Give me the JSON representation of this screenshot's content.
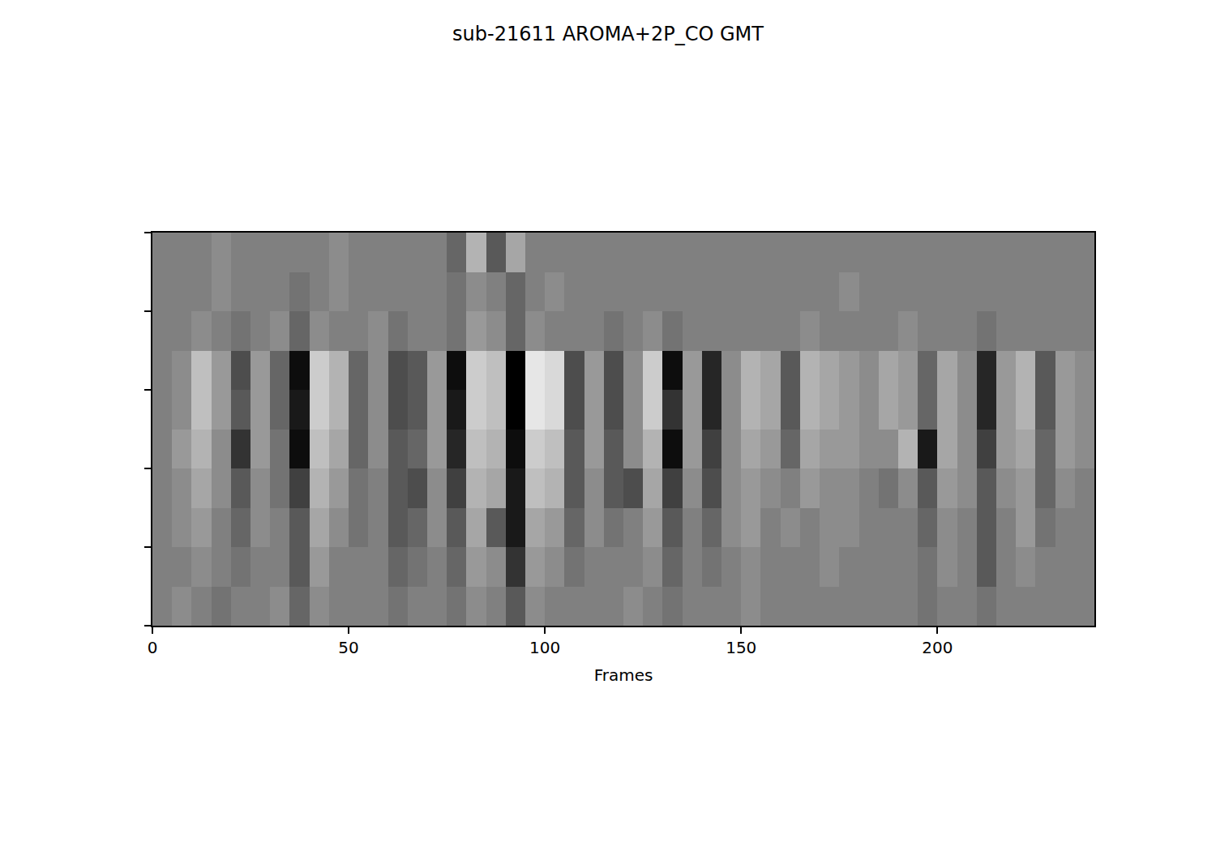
{
  "chart_data": {
    "type": "heatmap",
    "title": "sub-21611 AROMA+2P_CO GMT",
    "x_label": "Frames",
    "x": [
      2.5,
      7.5,
      12.5,
      17.5,
      22.5,
      27.5,
      32.5,
      37.5,
      42.5,
      47.5,
      52.5,
      57.5,
      62.5,
      67.5,
      72.5,
      77.5,
      82.5,
      87.5,
      92.5,
      97.5,
      102.5,
      107.5,
      112.5,
      117.5,
      122.5,
      127.5,
      132.5,
      137.5,
      142.5,
      147.5,
      152.5,
      157.5,
      162.5,
      167.5,
      172.5,
      177.5,
      182.5,
      187.5,
      192.5,
      197.5,
      202.5,
      207.5,
      212.5,
      217.5,
      222.5,
      227.5,
      232.5,
      237.5
    ],
    "y": [
      0.25,
      0.75,
      1.25,
      1.75,
      2.25,
      2.75,
      3.25,
      3.75,
      4.25,
      4.75
    ],
    "z": [
      [
        0,
        0.1,
        0,
        -0.1,
        0,
        0,
        0.1,
        -0.2,
        0.1,
        0,
        0,
        0,
        -0.1,
        0,
        0,
        -0.1,
        0.1,
        0,
        -0.3,
        0.1,
        0,
        0,
        0,
        0,
        0.1,
        0,
        -0.1,
        0,
        0,
        0,
        0.1,
        0,
        0,
        0,
        0,
        0,
        0,
        0,
        0,
        -0.1,
        0,
        0,
        -0.1,
        0,
        0,
        0,
        0,
        0
      ],
      [
        0,
        0,
        0.1,
        0,
        -0.1,
        0,
        0,
        -0.3,
        0.2,
        0,
        0,
        0,
        -0.2,
        -0.1,
        0,
        -0.2,
        0.2,
        0.1,
        -0.6,
        0.2,
        0.1,
        -0.1,
        0,
        0,
        0,
        0.1,
        -0.2,
        0,
        -0.1,
        0,
        0.1,
        0,
        0,
        0,
        0.1,
        0,
        0,
        0,
        0,
        -0.1,
        0.1,
        0,
        -0.3,
        0,
        0.1,
        0,
        0,
        0
      ],
      [
        0,
        0.1,
        0.2,
        0,
        -0.2,
        0.1,
        0,
        -0.3,
        0.3,
        0.1,
        -0.1,
        0,
        -0.3,
        -0.2,
        0.1,
        -0.3,
        0.3,
        -0.3,
        -0.8,
        0.3,
        0.2,
        -0.2,
        0.1,
        -0.1,
        0,
        0.2,
        -0.3,
        0,
        -0.2,
        0.1,
        0.2,
        0,
        0.1,
        0,
        0.1,
        0.1,
        0,
        0,
        0,
        -0.2,
        0.1,
        0,
        -0.3,
        0,
        0.2,
        -0.1,
        0,
        0
      ],
      [
        0,
        0.1,
        0.3,
        0.1,
        -0.3,
        0.1,
        -0.1,
        -0.5,
        0.4,
        0.2,
        -0.1,
        0,
        -0.3,
        -0.4,
        0.1,
        -0.5,
        0.4,
        0.3,
        -0.8,
        0.5,
        0.4,
        -0.3,
        0.1,
        -0.3,
        -0.4,
        0.3,
        -0.5,
        0.1,
        -0.4,
        0.1,
        0.2,
        0.1,
        0,
        0.2,
        0.1,
        0.1,
        0,
        -0.1,
        0.1,
        -0.3,
        0.2,
        0.1,
        -0.3,
        0.1,
        0.2,
        -0.2,
        0.1,
        0
      ],
      [
        0,
        0.2,
        0.4,
        0.1,
        -0.6,
        0.2,
        -0.1,
        -0.9,
        0.5,
        0.3,
        -0.2,
        0.1,
        -0.3,
        -0.2,
        0.2,
        -0.7,
        0.5,
        0.4,
        -0.9,
        0.6,
        0.5,
        -0.3,
        0.2,
        -0.3,
        0.1,
        0.4,
        -0.9,
        0.2,
        -0.5,
        0.1,
        0.3,
        0.2,
        -0.2,
        0.3,
        0.2,
        0.2,
        0.1,
        0.1,
        0.4,
        -0.8,
        0.3,
        0.1,
        -0.5,
        0.2,
        0.3,
        -0.2,
        0.2,
        0.1
      ],
      [
        0,
        0.1,
        0.5,
        0.2,
        -0.3,
        0.2,
        -0.2,
        -0.8,
        0.6,
        0.4,
        -0.2,
        0.1,
        -0.4,
        -0.3,
        0.2,
        -0.8,
        0.6,
        0.5,
        -1,
        0.8,
        0.7,
        -0.4,
        0.2,
        -0.4,
        0.1,
        0.6,
        -0.6,
        0.2,
        -0.7,
        0.1,
        0.4,
        0.3,
        -0.3,
        0.4,
        0.3,
        0.2,
        0.1,
        0.3,
        0.2,
        -0.2,
        0.3,
        0.1,
        -0.7,
        0.2,
        0.4,
        -0.3,
        0.2,
        0.1
      ],
      [
        0,
        0.1,
        0.5,
        0.2,
        -0.4,
        0.2,
        -0.2,
        -0.9,
        0.6,
        0.4,
        -0.2,
        0.1,
        -0.4,
        -0.3,
        0.2,
        -0.9,
        0.6,
        0.5,
        -1,
        0.8,
        0.7,
        -0.4,
        0.2,
        -0.4,
        0.1,
        0.6,
        -0.9,
        0.2,
        -0.7,
        0.1,
        0.4,
        0.3,
        -0.3,
        0.4,
        0.3,
        0.2,
        0.1,
        0.3,
        0.2,
        -0.2,
        0.3,
        0.1,
        -0.7,
        0.2,
        0.4,
        -0.3,
        0.2,
        0.1
      ],
      [
        0,
        0,
        0.1,
        0,
        -0.1,
        0,
        0.1,
        -0.2,
        0.1,
        0,
        0,
        0.1,
        -0.1,
        0,
        0,
        -0.1,
        0.2,
        0.1,
        -0.2,
        0.1,
        0,
        0,
        0,
        -0.1,
        0,
        0.1,
        -0.1,
        0,
        0,
        0,
        0,
        0,
        0,
        0.1,
        0,
        0,
        0,
        0,
        0.1,
        0,
        0,
        0,
        -0.1,
        0,
        0,
        0,
        0,
        0
      ],
      [
        0,
        0,
        0,
        0.1,
        0,
        0,
        0,
        -0.1,
        0,
        0.1,
        0,
        0,
        0,
        0,
        0,
        -0.1,
        0.1,
        0,
        -0.2,
        0,
        0.1,
        0,
        0,
        0,
        0,
        0,
        0,
        0,
        0,
        0,
        0,
        0,
        0,
        0,
        0,
        0.1,
        0,
        0,
        0,
        0,
        0,
        0,
        0,
        0,
        0,
        0,
        0,
        0
      ],
      [
        0,
        0,
        0,
        0.1,
        0,
        0,
        0,
        0,
        0,
        0.1,
        0,
        0,
        0,
        0,
        0,
        -0.2,
        0.4,
        -0.3,
        0.3,
        0,
        0,
        0,
        0,
        0,
        0,
        0,
        0,
        0,
        0,
        0,
        0,
        0,
        0,
        0,
        0,
        0,
        0,
        0,
        0,
        0,
        0,
        0,
        0,
        0,
        0,
        0,
        0,
        0
      ]
    ],
    "zlim": [
      -1,
      1
    ],
    "xlim": [
      0,
      240
    ],
    "xticks": [
      0,
      50,
      100,
      150,
      200
    ],
    "ylim": [
      0,
      5
    ],
    "yticks": [
      0,
      1,
      2,
      3,
      4,
      5
    ],
    "tick_labels": "x",
    "grid": false
  }
}
